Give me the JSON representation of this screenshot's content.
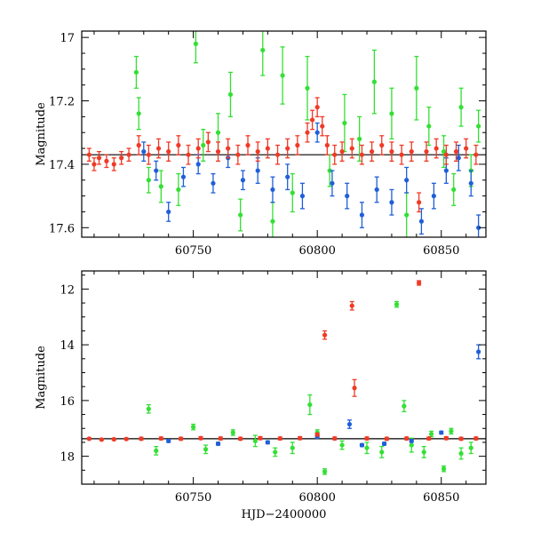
{
  "chart_data": [
    {
      "type": "scatter",
      "panel": "top",
      "title": "",
      "xlabel": "",
      "ylabel": "Magnitude",
      "xlim": [
        60705,
        60868
      ],
      "ylim": [
        17.63,
        16.98
      ],
      "y_inverted": true,
      "xticks": [
        60750,
        60800,
        60850
      ],
      "yticks": [
        17,
        17.2,
        17.4,
        17.6
      ],
      "ytick_labels": [
        "17",
        "17.2",
        "17.4",
        "17.6"
      ],
      "grid": false,
      "legend": "none",
      "reference_line": {
        "y": 17.37,
        "x_range": [
          60705,
          60868
        ],
        "color": "#000000"
      },
      "series": [
        {
          "color": "#33e033",
          "points": [
            {
              "x": 60727,
              "y": 17.11,
              "err": 0.05
            },
            {
              "x": 60728,
              "y": 17.24,
              "err": 0.05
            },
            {
              "x": 60732,
              "y": 17.45,
              "err": 0.04
            },
            {
              "x": 60737,
              "y": 17.47,
              "err": 0.05
            },
            {
              "x": 60744,
              "y": 17.48,
              "err": 0.05
            },
            {
              "x": 60751,
              "y": 17.02,
              "err": 0.06
            },
            {
              "x": 60754,
              "y": 17.34,
              "err": 0.05
            },
            {
              "x": 60760,
              "y": 17.3,
              "err": 0.06
            },
            {
              "x": 60765,
              "y": 17.18,
              "err": 0.07
            },
            {
              "x": 60769,
              "y": 17.56,
              "err": 0.05
            },
            {
              "x": 60778,
              "y": 17.04,
              "err": 0.08
            },
            {
              "x": 60782,
              "y": 17.58,
              "err": 0.06
            },
            {
              "x": 60786,
              "y": 17.12,
              "err": 0.09
            },
            {
              "x": 60790,
              "y": 17.49,
              "err": 0.06
            },
            {
              "x": 60796,
              "y": 17.16,
              "err": 0.1
            },
            {
              "x": 60805,
              "y": 17.42,
              "err": 0.05
            },
            {
              "x": 60811,
              "y": 17.27,
              "err": 0.09
            },
            {
              "x": 60817,
              "y": 17.32,
              "err": 0.07
            },
            {
              "x": 60823,
              "y": 17.14,
              "err": 0.1
            },
            {
              "x": 60830,
              "y": 17.24,
              "err": 0.08
            },
            {
              "x": 60836,
              "y": 17.56,
              "err": 0.07
            },
            {
              "x": 60840,
              "y": 17.16,
              "err": 0.1
            },
            {
              "x": 60845,
              "y": 17.28,
              "err": 0.06
            },
            {
              "x": 60851,
              "y": 17.36,
              "err": 0.05
            },
            {
              "x": 60855,
              "y": 17.48,
              "err": 0.05
            },
            {
              "x": 60858,
              "y": 17.22,
              "err": 0.06
            },
            {
              "x": 60862,
              "y": 17.42,
              "err": 0.05
            },
            {
              "x": 60865,
              "y": 17.28,
              "err": 0.05
            }
          ]
        },
        {
          "color": "#1f5fd8",
          "points": [
            {
              "x": 60730,
              "y": 17.36,
              "err": 0.03
            },
            {
              "x": 60735,
              "y": 17.42,
              "err": 0.03
            },
            {
              "x": 60740,
              "y": 17.55,
              "err": 0.03
            },
            {
              "x": 60746,
              "y": 17.44,
              "err": 0.03
            },
            {
              "x": 60752,
              "y": 17.4,
              "err": 0.03
            },
            {
              "x": 60758,
              "y": 17.46,
              "err": 0.03
            },
            {
              "x": 60764,
              "y": 17.38,
              "err": 0.03
            },
            {
              "x": 60770,
              "y": 17.45,
              "err": 0.03
            },
            {
              "x": 60776,
              "y": 17.42,
              "err": 0.04
            },
            {
              "x": 60782,
              "y": 17.48,
              "err": 0.04
            },
            {
              "x": 60788,
              "y": 17.44,
              "err": 0.04
            },
            {
              "x": 60794,
              "y": 17.5,
              "err": 0.04
            },
            {
              "x": 60800,
              "y": 17.3,
              "err": 0.03
            },
            {
              "x": 60806,
              "y": 17.46,
              "err": 0.04
            },
            {
              "x": 60812,
              "y": 17.5,
              "err": 0.04
            },
            {
              "x": 60818,
              "y": 17.56,
              "err": 0.04
            },
            {
              "x": 60824,
              "y": 17.48,
              "err": 0.04
            },
            {
              "x": 60830,
              "y": 17.52,
              "err": 0.04
            },
            {
              "x": 60836,
              "y": 17.45,
              "err": 0.04
            },
            {
              "x": 60842,
              "y": 17.58,
              "err": 0.04
            },
            {
              "x": 60847,
              "y": 17.5,
              "err": 0.04
            },
            {
              "x": 60852,
              "y": 17.42,
              "err": 0.04
            },
            {
              "x": 60857,
              "y": 17.38,
              "err": 0.04
            },
            {
              "x": 60862,
              "y": 17.46,
              "err": 0.04
            },
            {
              "x": 60865,
              "y": 17.6,
              "err": 0.04
            }
          ]
        },
        {
          "color": "#f03a26",
          "points": [
            {
              "x": 60708,
              "y": 17.37,
              "err": 0.02
            },
            {
              "x": 60710,
              "y": 17.4,
              "err": 0.02
            },
            {
              "x": 60712,
              "y": 17.38,
              "err": 0.02
            },
            {
              "x": 60715,
              "y": 17.39,
              "err": 0.02
            },
            {
              "x": 60718,
              "y": 17.4,
              "err": 0.02
            },
            {
              "x": 60721,
              "y": 17.38,
              "err": 0.02
            },
            {
              "x": 60724,
              "y": 17.37,
              "err": 0.02
            },
            {
              "x": 60728,
              "y": 17.34,
              "err": 0.03
            },
            {
              "x": 60732,
              "y": 17.37,
              "err": 0.03
            },
            {
              "x": 60736,
              "y": 17.35,
              "err": 0.03
            },
            {
              "x": 60740,
              "y": 17.36,
              "err": 0.03
            },
            {
              "x": 60744,
              "y": 17.34,
              "err": 0.03
            },
            {
              "x": 60748,
              "y": 17.37,
              "err": 0.03
            },
            {
              "x": 60752,
              "y": 17.35,
              "err": 0.03
            },
            {
              "x": 60756,
              "y": 17.33,
              "err": 0.03
            },
            {
              "x": 60760,
              "y": 17.36,
              "err": 0.03
            },
            {
              "x": 60764,
              "y": 17.35,
              "err": 0.03
            },
            {
              "x": 60768,
              "y": 17.37,
              "err": 0.03
            },
            {
              "x": 60772,
              "y": 17.34,
              "err": 0.03
            },
            {
              "x": 60776,
              "y": 17.36,
              "err": 0.03
            },
            {
              "x": 60780,
              "y": 17.35,
              "err": 0.03
            },
            {
              "x": 60784,
              "y": 17.37,
              "err": 0.03
            },
            {
              "x": 60788,
              "y": 17.35,
              "err": 0.03
            },
            {
              "x": 60792,
              "y": 17.34,
              "err": 0.03
            },
            {
              "x": 60796,
              "y": 17.3,
              "err": 0.03
            },
            {
              "x": 60798,
              "y": 17.26,
              "err": 0.03
            },
            {
              "x": 60800,
              "y": 17.22,
              "err": 0.03
            },
            {
              "x": 60802,
              "y": 17.28,
              "err": 0.03
            },
            {
              "x": 60804,
              "y": 17.34,
              "err": 0.03
            },
            {
              "x": 60807,
              "y": 17.37,
              "err": 0.03
            },
            {
              "x": 60810,
              "y": 17.36,
              "err": 0.03
            },
            {
              "x": 60814,
              "y": 17.35,
              "err": 0.03
            },
            {
              "x": 60818,
              "y": 17.37,
              "err": 0.03
            },
            {
              "x": 60822,
              "y": 17.36,
              "err": 0.03
            },
            {
              "x": 60826,
              "y": 17.34,
              "err": 0.03
            },
            {
              "x": 60830,
              "y": 17.36,
              "err": 0.03
            },
            {
              "x": 60834,
              "y": 17.37,
              "err": 0.03
            },
            {
              "x": 60838,
              "y": 17.36,
              "err": 0.03
            },
            {
              "x": 60841,
              "y": 17.52,
              "err": 0.03
            },
            {
              "x": 60844,
              "y": 17.36,
              "err": 0.03
            },
            {
              "x": 60848,
              "y": 17.35,
              "err": 0.03
            },
            {
              "x": 60852,
              "y": 17.37,
              "err": 0.03
            },
            {
              "x": 60856,
              "y": 17.36,
              "err": 0.03
            },
            {
              "x": 60860,
              "y": 17.35,
              "err": 0.03
            },
            {
              "x": 60864,
              "y": 17.37,
              "err": 0.03
            }
          ]
        }
      ]
    },
    {
      "type": "scatter",
      "panel": "bottom",
      "title": "",
      "xlabel": "HJD−2400000",
      "ylabel": "Magnitude",
      "xlim": [
        60705,
        60868
      ],
      "ylim": [
        19.0,
        11.35
      ],
      "y_inverted": true,
      "xticks": [
        60750,
        60800,
        60850
      ],
      "yticks": [
        12,
        14,
        16,
        18
      ],
      "ytick_labels": [
        "12",
        "14",
        "16",
        "18"
      ],
      "grid": false,
      "legend": "none",
      "reference_line": {
        "y": 17.37,
        "x_range": [
          60705,
          60868
        ],
        "color": "#000000"
      },
      "series": [
        {
          "color": "#33e033",
          "points": [
            {
              "x": 60732,
              "y": 16.3,
              "err": 0.15
            },
            {
              "x": 60735,
              "y": 17.8,
              "err": 0.15
            },
            {
              "x": 60750,
              "y": 16.95,
              "err": 0.1
            },
            {
              "x": 60755,
              "y": 17.75,
              "err": 0.15
            },
            {
              "x": 60766,
              "y": 17.15,
              "err": 0.1
            },
            {
              "x": 60775,
              "y": 17.45,
              "err": 0.2
            },
            {
              "x": 60783,
              "y": 17.85,
              "err": 0.15
            },
            {
              "x": 60790,
              "y": 17.7,
              "err": 0.2
            },
            {
              "x": 60797,
              "y": 16.15,
              "err": 0.35
            },
            {
              "x": 60800,
              "y": 17.15,
              "err": 0.1
            },
            {
              "x": 60803,
              "y": 18.55,
              "err": 0.1
            },
            {
              "x": 60810,
              "y": 17.6,
              "err": 0.15
            },
            {
              "x": 60820,
              "y": 17.7,
              "err": 0.2
            },
            {
              "x": 60826,
              "y": 17.85,
              "err": 0.2
            },
            {
              "x": 60832,
              "y": 12.55,
              "err": 0.1
            },
            {
              "x": 60835,
              "y": 16.2,
              "err": 0.2
            },
            {
              "x": 60838,
              "y": 17.6,
              "err": 0.25
            },
            {
              "x": 60843,
              "y": 17.85,
              "err": 0.2
            },
            {
              "x": 60846,
              "y": 17.2,
              "err": 0.1
            },
            {
              "x": 60851,
              "y": 18.45,
              "err": 0.1
            },
            {
              "x": 60854,
              "y": 17.1,
              "err": 0.1
            },
            {
              "x": 60858,
              "y": 17.9,
              "err": 0.2
            },
            {
              "x": 60862,
              "y": 17.7,
              "err": 0.2
            }
          ]
        },
        {
          "color": "#1f5fd8",
          "points": [
            {
              "x": 60740,
              "y": 17.45,
              "err": 0.05
            },
            {
              "x": 60760,
              "y": 17.55,
              "err": 0.05
            },
            {
              "x": 60780,
              "y": 17.5,
              "err": 0.05
            },
            {
              "x": 60800,
              "y": 17.3,
              "err": 0.05
            },
            {
              "x": 60813,
              "y": 16.85,
              "err": 0.15
            },
            {
              "x": 60818,
              "y": 17.6,
              "err": 0.05
            },
            {
              "x": 60827,
              "y": 17.55,
              "err": 0.05
            },
            {
              "x": 60838,
              "y": 17.45,
              "err": 0.05
            },
            {
              "x": 60850,
              "y": 17.15,
              "err": 0.05
            },
            {
              "x": 60865,
              "y": 14.25,
              "err": 0.25
            }
          ]
        },
        {
          "color": "#f03a26",
          "points": [
            {
              "x": 60708,
              "y": 17.37,
              "err": 0.03
            },
            {
              "x": 60713,
              "y": 17.4,
              "err": 0.03
            },
            {
              "x": 60718,
              "y": 17.39,
              "err": 0.03
            },
            {
              "x": 60723,
              "y": 17.38,
              "err": 0.03
            },
            {
              "x": 60729,
              "y": 17.37,
              "err": 0.05
            },
            {
              "x": 60737,
              "y": 17.36,
              "err": 0.05
            },
            {
              "x": 60745,
              "y": 17.37,
              "err": 0.05
            },
            {
              "x": 60753,
              "y": 17.35,
              "err": 0.05
            },
            {
              "x": 60761,
              "y": 17.36,
              "err": 0.05
            },
            {
              "x": 60769,
              "y": 17.37,
              "err": 0.05
            },
            {
              "x": 60777,
              "y": 17.35,
              "err": 0.05
            },
            {
              "x": 60785,
              "y": 17.36,
              "err": 0.05
            },
            {
              "x": 60793,
              "y": 17.35,
              "err": 0.05
            },
            {
              "x": 60800,
              "y": 17.22,
              "err": 0.05
            },
            {
              "x": 60803,
              "y": 13.65,
              "err": 0.15
            },
            {
              "x": 60807,
              "y": 17.36,
              "err": 0.05
            },
            {
              "x": 60814,
              "y": 12.6,
              "err": 0.15
            },
            {
              "x": 60815,
              "y": 15.55,
              "err": 0.3
            },
            {
              "x": 60820,
              "y": 17.36,
              "err": 0.05
            },
            {
              "x": 60828,
              "y": 17.37,
              "err": 0.05
            },
            {
              "x": 60836,
              "y": 17.36,
              "err": 0.05
            },
            {
              "x": 60841,
              "y": 11.78,
              "err": 0.08
            },
            {
              "x": 60845,
              "y": 17.36,
              "err": 0.05
            },
            {
              "x": 60852,
              "y": 17.35,
              "err": 0.05
            },
            {
              "x": 60858,
              "y": 17.37,
              "err": 0.05
            },
            {
              "x": 60864,
              "y": 17.36,
              "err": 0.05
            }
          ]
        }
      ]
    }
  ]
}
